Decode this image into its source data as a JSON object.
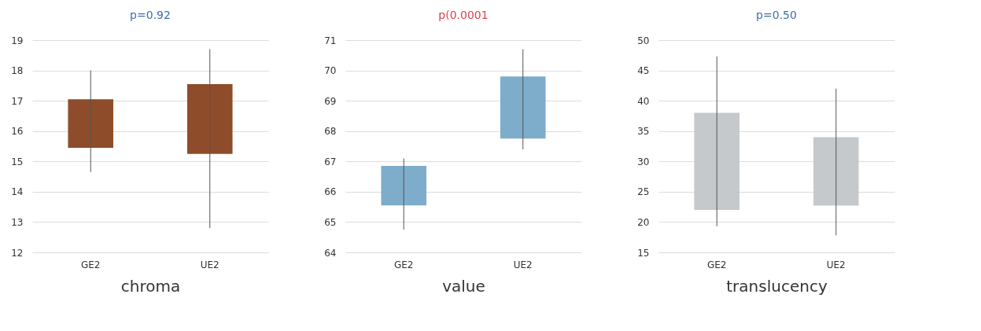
{
  "chart_data": [
    {
      "type": "bar",
      "title": "p=0.92",
      "xlabel": "chroma",
      "categories": [
        "GE2",
        "UE2"
      ],
      "base": [
        15.45,
        15.25
      ],
      "values": [
        1.6,
        2.3
      ],
      "errors": [
        [
          14.65,
          18.0
        ],
        [
          12.8,
          18.7
        ]
      ],
      "color": "#8e4c2a",
      "ylim": [
        12,
        19
      ],
      "yticks": [
        12,
        13,
        14,
        15,
        16,
        17,
        18,
        19
      ],
      "grid": "y"
    },
    {
      "type": "bar",
      "title": "p(0.0001",
      "xlabel": "value",
      "categories": [
        "GE2",
        "UE2"
      ],
      "base": [
        65.55,
        67.75
      ],
      "values": [
        1.3,
        2.05
      ],
      "errors": [
        [
          64.75,
          67.1
        ],
        [
          67.4,
          70.7
        ]
      ],
      "color": "#7eaccb",
      "ylim": [
        64,
        71
      ],
      "yticks": [
        64,
        65,
        66,
        67,
        68,
        69,
        70,
        71
      ],
      "grid": "y"
    },
    {
      "type": "bar",
      "title": "p=0.50",
      "xlabel": "translucency",
      "categories": [
        "GE2",
        "UE2"
      ],
      "base": [
        22,
        22.7
      ],
      "values": [
        16,
        11.3
      ],
      "errors": [
        [
          19.3,
          47.3
        ],
        [
          17.8,
          42
        ]
      ],
      "color": "#c5c9cc",
      "ylim": [
        15,
        50
      ],
      "yticks": [
        15,
        20,
        25,
        30,
        35,
        40,
        45,
        50
      ],
      "grid": "y"
    }
  ]
}
